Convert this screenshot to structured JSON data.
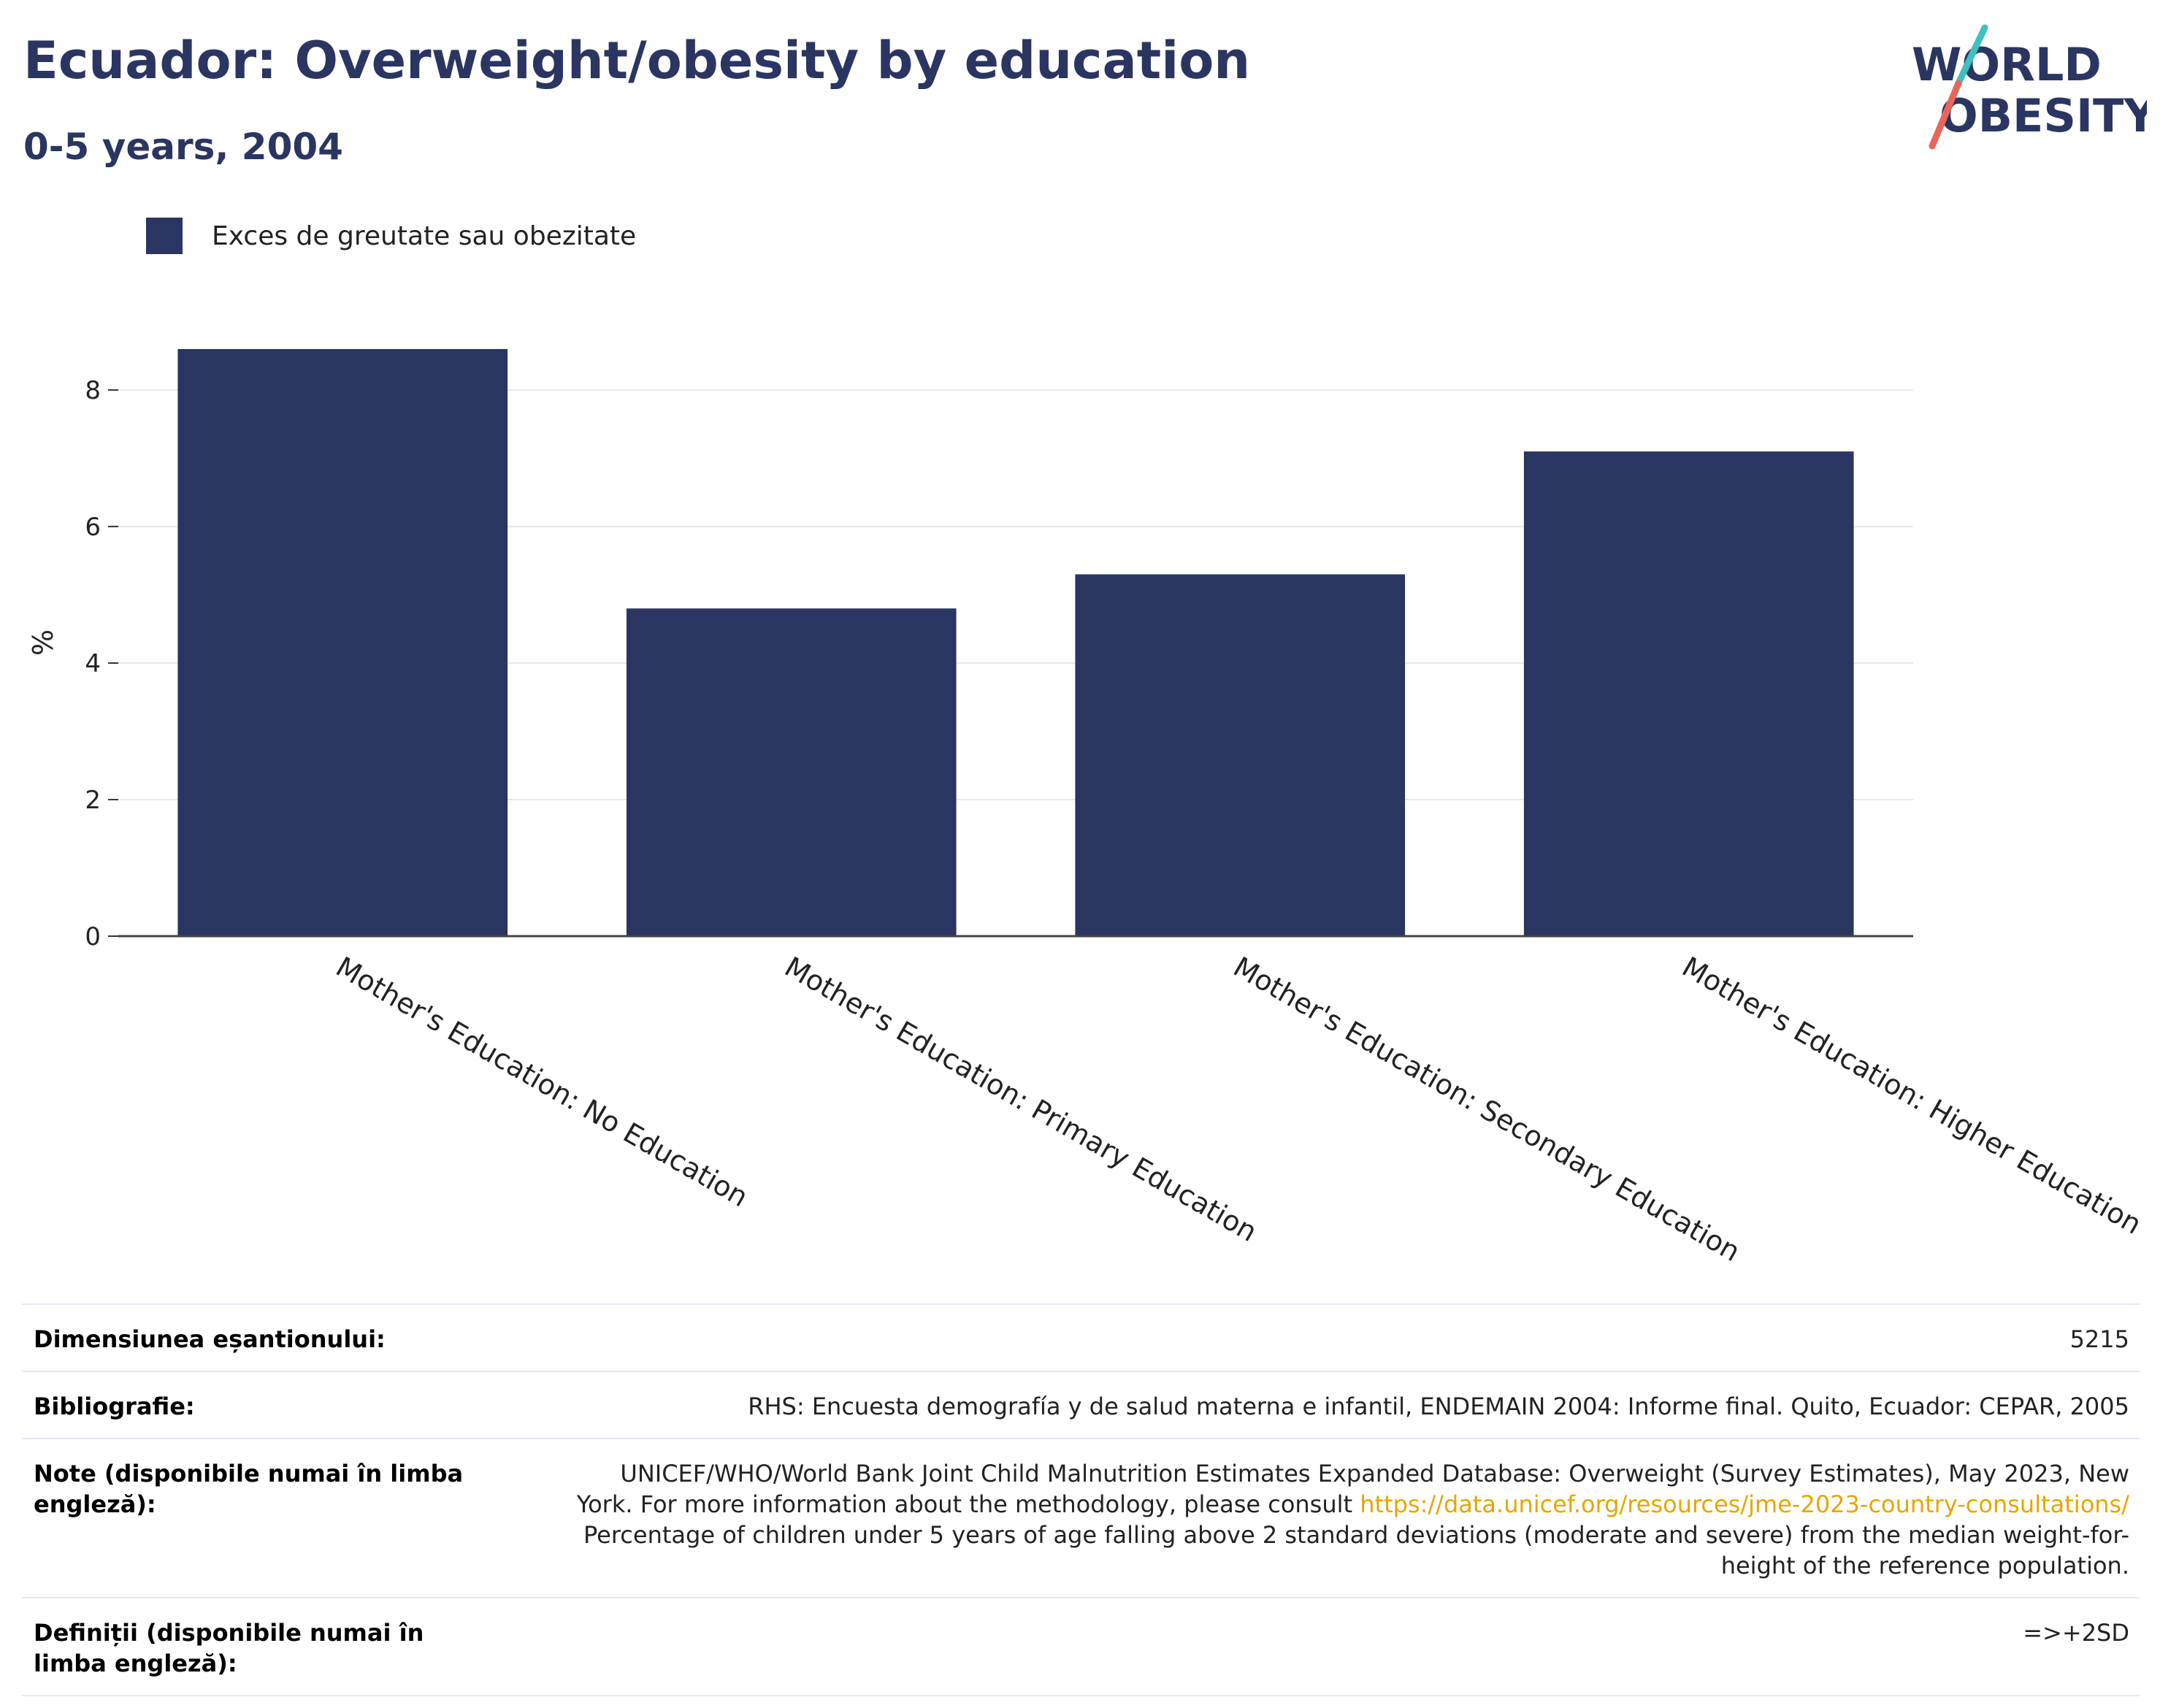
{
  "header": {
    "title": "Ecuador: Overweight/obesity by education",
    "subtitle": "0-5 years, 2004"
  },
  "logo": {
    "line1": "WORLD",
    "line2": "OBESITY",
    "colors": {
      "navy": "#2a3561",
      "teal": "#3cc0c0",
      "coral": "#e8675a"
    }
  },
  "legend": {
    "label": "Exces de greutate sau obezitate",
    "color": "#2a3561"
  },
  "chart_data": {
    "type": "bar",
    "categories": [
      "Mother's Education: No Education",
      "Mother's Education: Primary Education",
      "Mother's Education: Secondary Education",
      "Mother's Education: Higher Education"
    ],
    "series": [
      {
        "name": "Exces de greutate sau obezitate",
        "values": [
          8.6,
          4.8,
          5.3,
          7.1
        ],
        "color": "#2a3561"
      }
    ],
    "ylabel": "%",
    "ylim": [
      0,
      8.6
    ],
    "yticks": [
      0,
      2,
      4,
      6,
      8
    ],
    "grid": true
  },
  "info": {
    "sample_label": "Dimensiunea eșantionului:",
    "sample_value": "5215",
    "biblio_label": "Bibliografie:",
    "biblio_value": "RHS: Encuesta demografía y de salud materna e infantil, ENDEMAIN 2004: Informe final. Quito, Ecuador: CEPAR, 2005",
    "notes_label": "Note (disponibile numai în limba engleză):",
    "notes_text_1": "UNICEF/WHO/World Bank Joint Child Malnutrition Estimates Expanded Database: Overweight (Survey Estimates), May 2023, New York. For more information about the methodology, please consult ",
    "notes_link": "https://data.unicef.org/resources/jme-2023-country-consultations/",
    "notes_text_2": "Percentage of children under 5 years of age falling above 2 standard deviations (moderate and severe) from the median weight-for-height of the reference population.",
    "definitions_label": "Definiții (disponibile numai în limba engleză):",
    "definitions_value": "=>+2SD"
  }
}
